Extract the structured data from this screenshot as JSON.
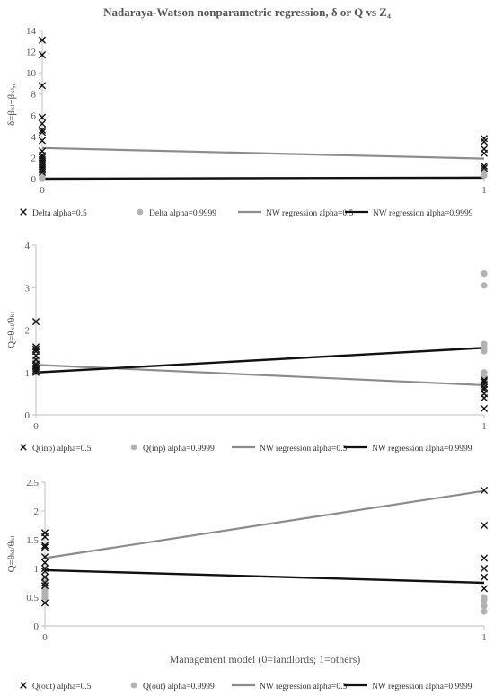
{
  "figure": {
    "title": "Nadaraya-Watson nonparametric regression, δ or Q vs Z₄",
    "xlabel": "Management model (0=landlords; 1=others)",
    "colors": {
      "cross": "#111111",
      "dot": "#b3b3b3",
      "nw_half": "#8c8c8c",
      "nw_high": "#111111",
      "axis": "#bfbfbf"
    }
  },
  "chart_data": [
    {
      "type": "scatter",
      "ylabel": "δ=βₖₗ−βₖₗ,ᵣ",
      "ylim": [
        0,
        14
      ],
      "yticks": [
        0,
        2,
        4,
        6,
        8,
        10,
        12,
        14
      ],
      "xlim": [
        0,
        1
      ],
      "xticks": [
        0,
        1
      ],
      "grid": false,
      "legend_position": "bottom",
      "series": [
        {
          "name": "Delta alpha=0.5",
          "kind": "scatter-cross",
          "points": [
            [
              0,
              13.1
            ],
            [
              0,
              11.7
            ],
            [
              0,
              8.8
            ],
            [
              0,
              5.8
            ],
            [
              0,
              5.2
            ],
            [
              0,
              4.6
            ],
            [
              0,
              4.4
            ],
            [
              0,
              3.6
            ],
            [
              0,
              2.6
            ],
            [
              0,
              2.2
            ],
            [
              0,
              2.0
            ],
            [
              0,
              1.8
            ],
            [
              0,
              1.6
            ],
            [
              0,
              1.4
            ],
            [
              0,
              1.2
            ],
            [
              0,
              1.0
            ],
            [
              0,
              0.8
            ],
            [
              0,
              0.6
            ],
            [
              1,
              3.8
            ],
            [
              1,
              3.5
            ],
            [
              1,
              2.8
            ],
            [
              1,
              2.4
            ],
            [
              1,
              1.2
            ],
            [
              1,
              1.0
            ]
          ]
        },
        {
          "name": "Delta alpha=0.9999",
          "kind": "scatter-dot",
          "points": [
            [
              0,
              0.3
            ],
            [
              0,
              0.2
            ],
            [
              0,
              0.1
            ],
            [
              0,
              0.0
            ],
            [
              1,
              0.6
            ],
            [
              1,
              0.3
            ]
          ]
        },
        {
          "name": "NW regression alpha=0.5",
          "kind": "line-gray",
          "points": [
            [
              0,
              2.9
            ],
            [
              1,
              1.9
            ]
          ]
        },
        {
          "name": "NW regression alpha=0.9999",
          "kind": "line-black",
          "points": [
            [
              0,
              0.0
            ],
            [
              1,
              0.1
            ]
          ]
        }
      ]
    },
    {
      "type": "scatter",
      "ylabel": "Q=θₖₗ/θₖₗ",
      "ylim": [
        0,
        4
      ],
      "yticks": [
        0,
        1,
        2,
        3,
        4
      ],
      "xlim": [
        0,
        1
      ],
      "xticks": [
        0,
        1
      ],
      "grid": false,
      "legend_position": "bottom",
      "series": [
        {
          "name": "Q(inp) alpha=0.5",
          "kind": "scatter-cross",
          "points": [
            [
              0,
              2.2
            ],
            [
              0,
              1.6
            ],
            [
              0,
              1.55
            ],
            [
              0,
              1.5
            ],
            [
              0,
              1.4
            ],
            [
              0,
              1.3
            ],
            [
              0,
              1.2
            ],
            [
              0,
              1.15
            ],
            [
              0,
              1.1
            ],
            [
              0,
              1.05
            ],
            [
              0,
              1.0
            ],
            [
              1,
              0.82
            ],
            [
              1,
              0.78
            ],
            [
              1,
              0.72
            ],
            [
              1,
              0.65
            ],
            [
              1,
              0.6
            ],
            [
              1,
              0.5
            ],
            [
              1,
              0.4
            ],
            [
              1,
              0.15
            ]
          ]
        },
        {
          "name": "Q(inp) alpha=0.9999",
          "kind": "scatter-dot",
          "points": [
            [
              0,
              1.3
            ],
            [
              0,
              1.2
            ],
            [
              0,
              1.1
            ],
            [
              0,
              1.0
            ],
            [
              1,
              3.33
            ],
            [
              1,
              3.05
            ],
            [
              1,
              1.67
            ],
            [
              1,
              1.58
            ],
            [
              1,
              1.5
            ],
            [
              1,
              1.0
            ],
            [
              1,
              0.9
            ]
          ]
        },
        {
          "name": "NW regression alpha=0.5",
          "kind": "line-gray",
          "points": [
            [
              0,
              1.18
            ],
            [
              1,
              0.7
            ]
          ]
        },
        {
          "name": "NW regression alpha=0.9999",
          "kind": "line-black",
          "points": [
            [
              0,
              1.0
            ],
            [
              1,
              1.58
            ]
          ]
        }
      ]
    },
    {
      "type": "scatter",
      "ylabel": "Q=θₖₗ/θₖₗ",
      "ylim": [
        0,
        2.5
      ],
      "yticks": [
        0,
        0.5,
        1,
        1.5,
        2,
        2.5
      ],
      "xlim": [
        0,
        1
      ],
      "xticks": [
        0,
        1
      ],
      "grid": false,
      "legend_position": "bottom",
      "series": [
        {
          "name": "Q(out) alpha=0.5",
          "kind": "scatter-cross",
          "points": [
            [
              0,
              1.62
            ],
            [
              0,
              1.55
            ],
            [
              0,
              1.4
            ],
            [
              0,
              1.37
            ],
            [
              0,
              1.2
            ],
            [
              0,
              1.1
            ],
            [
              0,
              1.0
            ],
            [
              0,
              0.95
            ],
            [
              0,
              0.85
            ],
            [
              0,
              0.75
            ],
            [
              0,
              0.7
            ],
            [
              0,
              0.4
            ],
            [
              1,
              2.36
            ],
            [
              1,
              1.75
            ],
            [
              1,
              1.18
            ],
            [
              1,
              1.0
            ],
            [
              1,
              0.85
            ],
            [
              1,
              0.65
            ]
          ]
        },
        {
          "name": "Q(out) alpha=0.9999",
          "kind": "scatter-dot",
          "points": [
            [
              0,
              0.8
            ],
            [
              0,
              0.7
            ],
            [
              0,
              0.65
            ],
            [
              0,
              0.6
            ],
            [
              0,
              0.55
            ],
            [
              0,
              0.5
            ],
            [
              1,
              0.5
            ],
            [
              1,
              0.45
            ],
            [
              1,
              0.35
            ],
            [
              1,
              0.25
            ]
          ]
        },
        {
          "name": "NW regression alpha=0.5",
          "kind": "line-gray",
          "points": [
            [
              0,
              1.18
            ],
            [
              1,
              2.35
            ]
          ]
        },
        {
          "name": "NW regression alpha=0.9999",
          "kind": "line-black",
          "points": [
            [
              0,
              0.97
            ],
            [
              1,
              0.75
            ]
          ]
        }
      ]
    }
  ]
}
